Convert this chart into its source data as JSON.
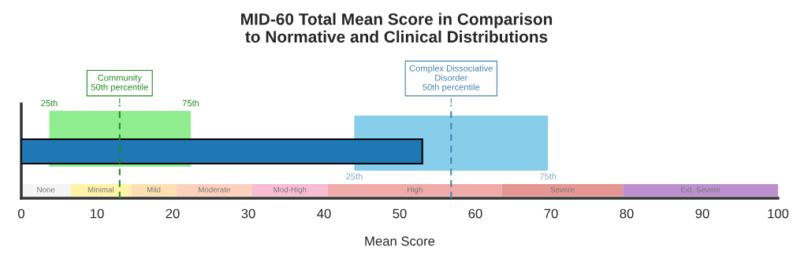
{
  "chart_data": {
    "type": "bar",
    "orientation": "horizontal",
    "title": "MID-60 Total Mean Score in Comparison\nto Normative and Clinical Distributions",
    "xlabel": "Mean Score",
    "categories": [
      null
    ],
    "values": [
      53.0
    ],
    "color": "#1f77b4",
    "xlim": [
      0,
      100
    ],
    "xticks": [
      0,
      10,
      20,
      30,
      40,
      50,
      60,
      70,
      80,
      90,
      100
    ],
    "tick_labels": "x",
    "grid": false,
    "ref_lines": [
      {
        "axis": "x",
        "value": 13.0,
        "label": "Community\n50th percentile",
        "color": "#228b22",
        "line_style": "dashed"
      },
      {
        "axis": "x",
        "value": 56.8,
        "label": "Complex Dissociative\nDisorder\n50th percentile",
        "color": "#4682b4",
        "line_style": "dashed"
      }
    ],
    "bands": [
      {
        "axis": "x",
        "from": 3.7,
        "to": 22.4,
        "color": "#90ee90"
      },
      {
        "axis": "x",
        "from": 44.0,
        "to": 69.6,
        "color": "#87ceeb"
      },
      {
        "axis": "x",
        "from": 0,
        "to": 6.5,
        "label": "None",
        "color": "#f4f4f4"
      },
      {
        "axis": "x",
        "from": 6.5,
        "to": 14.5,
        "label": "Minimal",
        "color": "#fff3a8"
      },
      {
        "axis": "x",
        "from": 14.5,
        "to": 20.5,
        "label": "Mild",
        "color": "#fde0b2"
      },
      {
        "axis": "x",
        "from": 20.5,
        "to": 30.5,
        "label": "Moderate",
        "color": "#fdd0bd"
      },
      {
        "axis": "x",
        "from": 30.5,
        "to": 40.5,
        "label": "Mod-High",
        "color": "#f8bcd3"
      },
      {
        "axis": "x",
        "from": 40.5,
        "to": 63.5,
        "label": "High",
        "color": "#f0aaa8"
      },
      {
        "axis": "x",
        "from": 63.5,
        "to": 79.5,
        "label": "Severe",
        "color": "#e59692"
      },
      {
        "axis": "x",
        "from": 79.5,
        "to": 100,
        "label": "Ext. Severe",
        "color": "#bb8fce"
      }
    ],
    "annotations": [
      "25th",
      "75th",
      "25th",
      "75th"
    ]
  }
}
